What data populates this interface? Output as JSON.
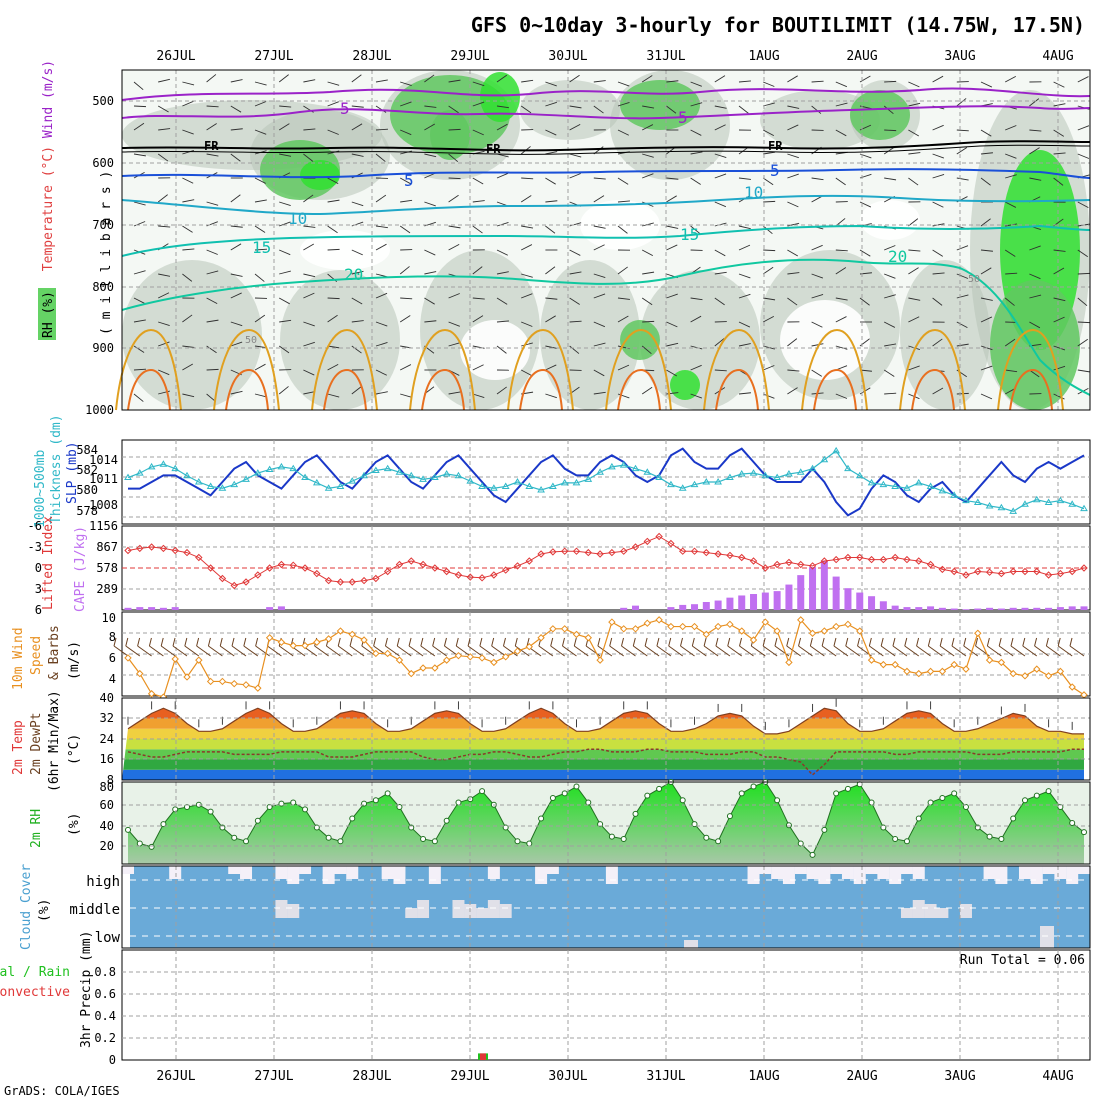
{
  "title": "GFS 0~10day 3-hourly for BOUTILIMIT (14.75W, 17.5N)",
  "footer": "GrADS: COLA/IGES",
  "dates": [
    "26JUL",
    "27JUL",
    "28JUL",
    "29JUL",
    "30JUL",
    "31JUL",
    "1AUG",
    "2AUG",
    "3AUG",
    "4AUG"
  ],
  "colors": {
    "rh_green": "#3fc83f",
    "wind_purple": "#9a22c8",
    "temp_blue": "#1a50d8",
    "temp_cyan": "#20a8c8",
    "temp_teal": "#10c8a0",
    "temp_orange": "#e0a020",
    "slp_blue": "#1a38c8",
    "thk_cyan": "#30b8c8",
    "lifted_red": "#e03838",
    "cape_purple": "#c070f0",
    "wind10_orange": "#e89020",
    "barb_brown": "#6a4020",
    "cloud_blue": "#6aaad8",
    "precip_green": "#20c020"
  },
  "panels": {
    "upper": {
      "ylabel_parts": [
        "RH (%)",
        "Temperature (°C)",
        "Wind (m/s)"
      ],
      "ylabel_mb": "( m i l l i b a r s )",
      "yticks": [
        "500",
        "600",
        "700",
        "800",
        "900",
        "1000"
      ],
      "labels": {
        "fr": "FR",
        "w5": "5",
        "t5": "5",
        "t10": "10",
        "t15": "15",
        "t20": "20",
        "rh50": "50"
      }
    },
    "slp": {
      "ylabel1": "1000~500mb",
      "ylabel2": "Thickness (dm)",
      "ylabel3": "SLP (mb)",
      "left_ticks": [
        "584",
        "582",
        "580",
        "578"
      ],
      "right_ticks": [
        "1014",
        "1011",
        "1008"
      ]
    },
    "cape": {
      "ylabel1": "Lifted Index",
      "ylabel2": "CAPE (J/kg)",
      "left_ticks": [
        "-6",
        "-3",
        "0",
        "3",
        "6"
      ],
      "right_ticks": [
        "1156",
        "867",
        "578",
        "289"
      ]
    },
    "wind10": {
      "ylabel1": "10m Wind",
      "ylabel2": "Speed",
      "ylabel3": "& Barbs",
      "ylabel4": "(m/s)",
      "ticks": [
        "10",
        "8",
        "6",
        "4"
      ]
    },
    "temp2m": {
      "ylabel1": "2m Temp",
      "ylabel2": "2m DewPt",
      "ylabel3": "(6hr Min/Max)",
      "ylabel4": "(°C)",
      "ticks": [
        "40",
        "32",
        "24",
        "16",
        "8"
      ]
    },
    "rh2m": {
      "ylabel1": "2m RH",
      "ylabel2": "(%)",
      "ticks": [
        "80",
        "60",
        "40",
        "20"
      ]
    },
    "cloud": {
      "ylabel1": "Cloud Cover",
      "ylabel2": "(%)",
      "levels": [
        "high",
        "middle",
        "low"
      ]
    },
    "precip": {
      "ylabel1": "Total / Rain",
      "ylabel2": "Convective",
      "ylabel3": "3hr Precip (mm)",
      "ticks": [
        "0.8",
        "0.6",
        "0.4",
        "0.2",
        "0"
      ],
      "run_total": "Run Total = 0.06"
    }
  },
  "chart_data": [
    {
      "type": "line",
      "title": "1000~500mb Thickness / SLP",
      "x": "3-hourly steps 0..81 (25JUL 12Z – 4AUG 12Z)",
      "series": [
        {
          "name": "SLP (mb)",
          "values": [
            1010,
            1010,
            1011,
            1012,
            1012,
            1011,
            1010,
            1009,
            1011,
            1013,
            1014,
            1012,
            1011,
            1010,
            1012,
            1014,
            1015,
            1013,
            1011,
            1010,
            1012,
            1014,
            1015,
            1013,
            1011,
            1010,
            1012,
            1014,
            1015,
            1013,
            1011,
            1009,
            1008,
            1010,
            1012,
            1014,
            1015,
            1013,
            1012,
            1012,
            1014,
            1015,
            1014,
            1012,
            1011,
            1012,
            1015,
            1016,
            1014,
            1013,
            1013,
            1015,
            1016,
            1014,
            1012,
            1011,
            1011,
            1011,
            1013,
            1011,
            1008,
            1006,
            1007,
            1010,
            1012,
            1011,
            1009,
            1008,
            1010,
            1011,
            1009,
            1008,
            1010,
            1012,
            1014,
            1012,
            1011,
            1013,
            1014,
            1013,
            1014,
            1015
          ]
        },
        {
          "name": "Thickness (dm)",
          "values": [
            582.0,
            582.5,
            583.2,
            583.5,
            583.0,
            582.2,
            581.5,
            581.0,
            580.8,
            581.2,
            581.8,
            582.5,
            582.9,
            583.2,
            583.0,
            582.0,
            581.4,
            580.8,
            581.0,
            581.6,
            582.2,
            582.8,
            583.0,
            582.6,
            582.2,
            581.8,
            582.0,
            582.4,
            582.2,
            581.6,
            581.0,
            580.8,
            581.0,
            581.5,
            581.0,
            580.6,
            581.0,
            581.4,
            581.4,
            581.8,
            582.6,
            583.2,
            583.4,
            583.0,
            582.6,
            582.0,
            581.2,
            580.8,
            581.2,
            581.5,
            581.5,
            582.0,
            582.4,
            582.5,
            582.2,
            582.0,
            582.4,
            582.6,
            583.0,
            584.0,
            585.0,
            583.0,
            582.2,
            581.4,
            581.2,
            581.0,
            580.8,
            581.4,
            581.0,
            580.5,
            580.0,
            579.4,
            579.2,
            578.8,
            578.6,
            578.2,
            579.0,
            579.5,
            579.2,
            579.4,
            579.0,
            578.5
          ]
        }
      ],
      "ylim_slp": [
        1005,
        1017
      ],
      "ylim_thickness": [
        577,
        586
      ]
    },
    {
      "type": "bar",
      "title": "Lifted Index / CAPE",
      "series": [
        {
          "name": "Lifted Index",
          "values": [
            -2.5,
            -2.8,
            -3.0,
            -2.8,
            -2.5,
            -2.2,
            -1.5,
            0.0,
            1.5,
            2.5,
            2.0,
            1.0,
            0.0,
            -0.5,
            -0.4,
            0.0,
            0.8,
            1.8,
            2.0,
            2.0,
            1.8,
            1.5,
            0.5,
            -0.5,
            -1.0,
            -0.5,
            0.0,
            0.5,
            1.0,
            1.3,
            1.4,
            1.0,
            0.3,
            -0.3,
            -1.0,
            -2.0,
            -2.3,
            -2.4,
            -2.4,
            -2.2,
            -2.0,
            -2.2,
            -2.4,
            -3.0,
            -3.8,
            -4.5,
            -3.5,
            -2.4,
            -2.4,
            -2.2,
            -2.0,
            -1.8,
            -1.5,
            -1.0,
            0.0,
            -0.5,
            -0.8,
            -0.5,
            -0.3,
            -1.0,
            -1.2,
            -1.5,
            -1.5,
            -1.2,
            -1.2,
            -1.5,
            -1.2,
            -1.0,
            -0.5,
            0.2,
            0.5,
            1.0,
            0.5,
            0.6,
            0.8,
            0.5,
            0.5,
            0.5,
            1.0,
            0.8,
            0.5,
            0.0
          ]
        },
        {
          "name": "CAPE (J/kg)",
          "values": [
            30,
            40,
            40,
            30,
            40,
            0,
            0,
            0,
            0,
            0,
            0,
            0,
            40,
            50,
            0,
            0,
            0,
            0,
            0,
            0,
            0,
            0,
            0,
            0,
            0,
            0,
            0,
            0,
            0,
            0,
            0,
            0,
            0,
            0,
            0,
            0,
            0,
            0,
            0,
            0,
            0,
            0,
            30,
            60,
            0,
            0,
            40,
            70,
            80,
            110,
            130,
            170,
            200,
            220,
            240,
            260,
            350,
            480,
            590,
            680,
            460,
            300,
            240,
            190,
            120,
            60,
            40,
            40,
            50,
            30,
            20,
            10,
            20,
            30,
            20,
            30,
            30,
            30,
            30,
            40,
            50,
            50
          ]
        }
      ],
      "ylim_li": [
        6,
        -6
      ],
      "ylim_cape": [
        0,
        1156
      ]
    },
    {
      "type": "line",
      "title": "10m Wind Speed & Barbs",
      "series": [
        {
          "name": "10m Wind Speed (m/s)",
          "values": [
            6.4,
            5.0,
            3.2,
            2.9,
            6.3,
            4.7,
            6.2,
            4.3,
            4.3,
            4.1,
            4.0,
            3.7,
            8.2,
            7.8,
            7.5,
            7.5,
            7.8,
            8.1,
            8.8,
            8.5,
            8.0,
            6.8,
            6.8,
            6.2,
            5.0,
            5.5,
            5.5,
            6.2,
            6.6,
            6.5,
            6.4,
            6.0,
            6.5,
            7.0,
            7.4,
            8.2,
            9.0,
            9.0,
            8.5,
            8.2,
            6.2,
            9.6,
            9.0,
            9.0,
            9.5,
            9.8,
            9.2,
            9.2,
            9.2,
            8.5,
            9.2,
            9.4,
            8.8,
            8.0,
            9.6,
            8.8,
            6.0,
            9.8,
            8.6,
            8.8,
            9.2,
            9.4,
            8.8,
            6.2,
            5.8,
            5.8,
            5.2,
            5.0,
            5.2,
            5.2,
            5.8,
            5.4,
            8.6,
            6.2,
            6.0,
            5.0,
            4.8,
            5.4,
            4.8,
            5.2,
            3.8,
            3.1
          ]
        }
      ],
      "ylim": [
        3,
        10.5
      ]
    },
    {
      "type": "area",
      "title": "2m Temp / 2m DewPt (6hr Min/Max)",
      "series": [
        {
          "name": "2m Temp (°C)",
          "values": [
            28,
            31,
            34,
            36,
            34,
            30,
            27,
            27,
            28,
            31,
            34,
            36,
            34,
            30,
            27,
            27,
            28,
            31,
            34,
            35,
            34,
            30,
            27,
            27,
            28,
            31,
            34,
            35,
            34,
            30,
            27,
            27,
            28,
            31,
            34,
            36,
            34,
            30,
            27,
            27,
            28,
            31,
            34,
            35,
            34,
            30,
            27,
            27,
            28,
            30,
            33,
            34,
            33,
            29,
            26,
            26,
            27,
            30,
            33,
            36,
            35,
            30,
            27,
            27,
            28,
            31,
            34,
            35,
            34,
            30,
            27,
            27,
            28,
            30,
            32,
            34,
            33,
            29,
            27,
            27,
            26,
            26
          ]
        },
        {
          "name": "2m DewPt (°C)",
          "values": [
            19,
            18,
            17,
            17,
            18,
            19,
            19,
            19,
            19,
            18,
            18,
            18,
            18,
            19,
            19,
            19,
            19,
            17,
            17,
            17,
            18,
            19,
            19,
            19,
            19,
            17,
            16,
            16,
            17,
            18,
            18,
            19,
            19,
            18,
            17,
            17,
            18,
            19,
            19,
            20,
            20,
            19,
            19,
            19,
            20,
            20,
            19,
            19,
            19,
            18,
            18,
            18,
            19,
            19,
            17,
            17,
            16,
            15,
            10,
            14,
            19,
            19,
            19,
            19,
            19,
            18,
            18,
            19,
            19,
            19,
            19,
            19,
            18,
            18,
            18,
            19,
            19,
            19,
            19,
            19,
            20,
            20
          ]
        }
      ],
      "ylim": [
        8,
        40
      ]
    },
    {
      "type": "area",
      "title": "2m RH",
      "series": [
        {
          "name": "2m RH (%)",
          "values": [
            40,
            28,
            25,
            45,
            58,
            60,
            62,
            56,
            42,
            33,
            30,
            48,
            60,
            63,
            64,
            58,
            42,
            33,
            30,
            50,
            63,
            66,
            72,
            60,
            42,
            32,
            30,
            48,
            64,
            67,
            74,
            62,
            42,
            30,
            28,
            50,
            68,
            72,
            78,
            64,
            45,
            34,
            32,
            54,
            70,
            76,
            82,
            66,
            45,
            33,
            30,
            52,
            72,
            78,
            82,
            66,
            44,
            28,
            18,
            40,
            72,
            76,
            80,
            64,
            42,
            32,
            30,
            50,
            64,
            68,
            72,
            60,
            42,
            34,
            32,
            50,
            66,
            70,
            74,
            60,
            46,
            38
          ]
        }
      ],
      "ylim": [
        10,
        82
      ]
    },
    {
      "type": "bar",
      "title": "3hr Precip",
      "series": [
        {
          "name": "Total / Rain (mm)",
          "values": [
            0.06
          ]
        },
        {
          "name": "Convective (mm)",
          "values": [
            0.06
          ]
        }
      ],
      "x": [
        "29JUL 12Z"
      ],
      "ylim": [
        0,
        1.0
      ]
    }
  ]
}
